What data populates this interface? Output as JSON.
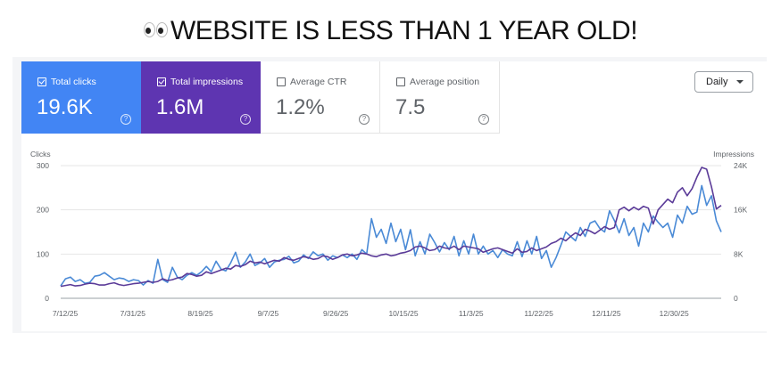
{
  "headline": "WEBSITE IS LESS THAN 1 YEAR OLD!",
  "headline_icon": "eyes-emoji",
  "metrics": [
    {
      "label": "Total clicks",
      "value": "19.6K",
      "checked": true,
      "color": "#4285f4"
    },
    {
      "label": "Total impressions",
      "value": "1.6M",
      "checked": true,
      "color": "#5e35b1"
    },
    {
      "label": "Average CTR",
      "value": "1.2%",
      "checked": false
    },
    {
      "label": "Average position",
      "value": "7.5",
      "checked": false
    }
  ],
  "period_select": {
    "value": "Daily"
  },
  "chart_data": {
    "type": "line",
    "left_axis": {
      "label": "Clicks",
      "ticks": [
        "300",
        "200",
        "100",
        "0"
      ],
      "range": [
        0,
        300
      ]
    },
    "right_axis": {
      "label": "Impressions",
      "ticks": [
        "24K",
        "16K",
        "8K",
        "0"
      ],
      "range": [
        0,
        24000
      ]
    },
    "x_ticks": [
      "7/12/25",
      "7/31/25",
      "8/19/25",
      "9/7/25",
      "9/26/25",
      "10/15/25",
      "11/3/25",
      "11/22/25",
      "12/11/25",
      "12/30/25"
    ],
    "grid": true,
    "series": [
      {
        "axis": "left",
        "color": "#4a8ad6",
        "values": [
          28,
          44,
          48,
          38,
          42,
          34,
          36,
          50,
          52,
          58,
          50,
          42,
          46,
          44,
          38,
          42,
          40,
          30,
          40,
          34,
          88,
          42,
          36,
          70,
          48,
          42,
          52,
          58,
          52,
          60,
          72,
          60,
          84,
          66,
          62,
          80,
          104,
          70,
          82,
          100,
          74,
          80,
          90,
          70,
          82,
          86,
          88,
          95,
          80,
          84,
          98,
          90,
          105,
          96,
          100,
          86,
          96,
          92,
          98,
          92,
          100,
          88,
          110,
          100,
          180,
          138,
          156,
          124,
          170,
          128,
          156,
          110,
          155,
          96,
          128,
          100,
          145,
          126,
          105,
          126,
          110,
          140,
          96,
          130,
          100,
          145,
          100,
          118,
          100,
          108,
          92,
          110,
          100,
          96,
          128,
          94,
          130,
          100,
          140,
          90,
          108,
          70,
          92,
          120,
          150,
          140,
          130,
          160,
          140,
          170,
          175,
          158,
          150,
          198,
          176,
          148,
          180,
          142,
          160,
          118,
          170,
          150,
          186,
          172,
          160,
          170,
          138,
          188,
          170,
          208,
          190,
          195,
          255,
          210,
          232,
          175,
          150
        ]
      },
      {
        "axis": "right",
        "color": "#5b3b98",
        "values": [
          2160,
          2320,
          2480,
          2240,
          2320,
          2560,
          2720,
          2640,
          2400,
          2400,
          2640,
          2800,
          2480,
          2320,
          2480,
          2640,
          2720,
          2880,
          3040,
          2880,
          3040,
          3520,
          3200,
          3360,
          3680,
          3840,
          4480,
          4320,
          4000,
          4160,
          4800,
          4480,
          4800,
          5120,
          5440,
          5280,
          5920,
          5760,
          6080,
          6720,
          6400,
          6560,
          6240,
          6560,
          6880,
          6720,
          7360,
          7040,
          6880,
          7200,
          7520,
          7360,
          7040,
          7200,
          7680,
          7520,
          7040,
          7360,
          7840,
          8000,
          7680,
          7840,
          8160,
          8000,
          7680,
          7520,
          7840,
          8000,
          7680,
          7840,
          8160,
          8320,
          8640,
          9280,
          9440,
          9120,
          8640,
          8800,
          9440,
          9120,
          8960,
          9440,
          8800,
          9440,
          9280,
          9120,
          8960,
          8320,
          8640,
          8960,
          9120,
          8800,
          8480,
          8160,
          8960,
          8320,
          8480,
          9120,
          8640,
          8960,
          9280,
          9920,
          10240,
          10880,
          10400,
          11200,
          11840,
          11360,
          12480,
          12160,
          11680,
          12320,
          12960,
          12480,
          12800,
          16000,
          16480,
          15840,
          16480,
          16000,
          16640,
          16320,
          13440,
          16000,
          16960,
          17920,
          17280,
          19200,
          20000,
          18560,
          19840,
          21920,
          23680,
          23360,
          20160,
          16160,
          16800
        ]
      }
    ]
  }
}
